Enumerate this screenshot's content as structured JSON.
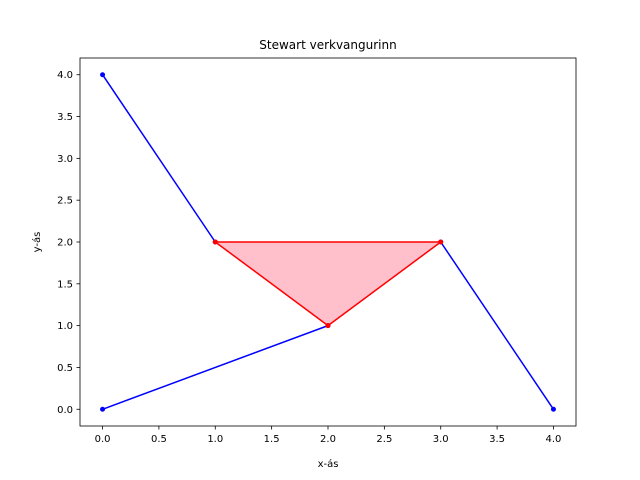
{
  "chart_data": {
    "type": "line",
    "title": "Stewart verkvangurinn",
    "xlabel": "x-ás",
    "ylabel": "y-ás",
    "xlim": [
      -0.2,
      4.2
    ],
    "ylim": [
      -0.2,
      4.2
    ],
    "x_ticks": [
      0.0,
      0.5,
      1.0,
      1.5,
      2.0,
      2.5,
      3.0,
      3.5,
      4.0
    ],
    "y_ticks": [
      0.0,
      0.5,
      1.0,
      1.5,
      2.0,
      2.5,
      3.0,
      3.5,
      4.0
    ],
    "x_tick_labels": [
      "0.0",
      "0.5",
      "1.0",
      "1.5",
      "2.0",
      "2.5",
      "3.0",
      "3.5",
      "4.0"
    ],
    "y_tick_labels": [
      "0.0",
      "0.5",
      "1.0",
      "1.5",
      "2.0",
      "2.5",
      "3.0",
      "3.5",
      "4.0"
    ],
    "grid": false,
    "legs": [
      {
        "color": "#0000ff",
        "points": [
          [
            0,
            0
          ],
          [
            2,
            1
          ]
        ]
      },
      {
        "color": "#0000ff",
        "points": [
          [
            0,
            4
          ],
          [
            1,
            2
          ]
        ]
      },
      {
        "color": "#0000ff",
        "points": [
          [
            4,
            0
          ],
          [
            3,
            2
          ]
        ]
      }
    ],
    "platform": {
      "edge_color": "#ff0000",
      "fill_color": "#ffc0cb",
      "points": [
        [
          1,
          2
        ],
        [
          2,
          1
        ],
        [
          3,
          2
        ]
      ]
    }
  }
}
